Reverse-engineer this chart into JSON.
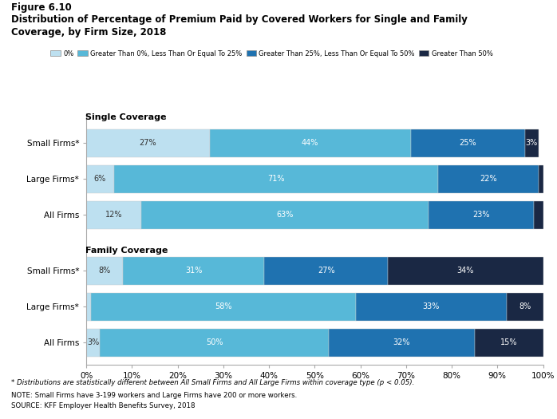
{
  "title_line1": "Figure 6.10",
  "title_line2": "Distribution of Percentage of Premium Paid by Covered Workers for Single and Family",
  "title_line3": "Coverage, by Firm Size, 2018",
  "colors": [
    "#bde0f0",
    "#57b8d8",
    "#1f72b0",
    "#1a2844"
  ],
  "legend_labels": [
    "0%",
    "Greater Than 0%, Less Than Or Equal To 25%",
    "Greater Than 25%, Less Than Or Equal To 50%",
    "Greater Than 50%"
  ],
  "row_labels": [
    "Small Firms*",
    "Large Firms*",
    "All Firms",
    "Small Firms*",
    "Large Firms*",
    "All Firms"
  ],
  "data": [
    [
      27,
      44,
      25,
      3
    ],
    [
      6,
      71,
      22,
      1
    ],
    [
      12,
      63,
      23,
      2
    ],
    [
      8,
      31,
      27,
      34
    ],
    [
      1,
      58,
      33,
      8
    ],
    [
      3,
      50,
      32,
      15
    ]
  ],
  "text_labels": [
    [
      "27%",
      "44%",
      "25%",
      "3%"
    ],
    [
      "6%",
      "71%",
      "22%",
      ""
    ],
    [
      "12%",
      "63%",
      "23%",
      ""
    ],
    [
      "8%",
      "31%",
      "27%",
      "34%"
    ],
    [
      "",
      "58%",
      "33%",
      "8%"
    ],
    [
      "3%",
      "50%",
      "32%",
      "15%"
    ]
  ],
  "footnote1": "* Distributions are statistically different between All Small Firms and All Large Firms within coverage type (p < 0.05).",
  "footnote2": "NOTE: Small Firms have 3-199 workers and Large Firms have 200 or more workers.",
  "footnote3": "SOURCE: KFF Employer Health Benefits Survey, 2018",
  "background_color": "#ffffff"
}
